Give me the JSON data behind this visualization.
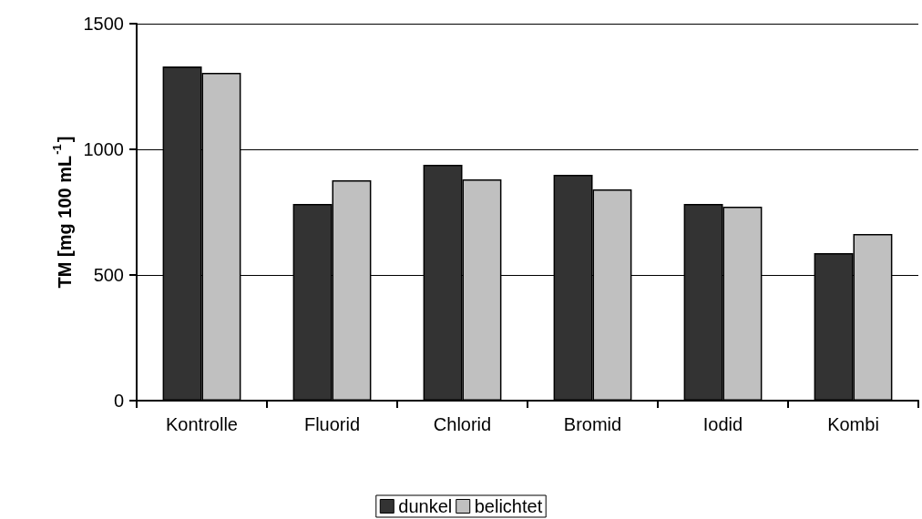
{
  "chart_data": {
    "type": "bar",
    "ylabel": "TM [mg 100 mL$^{-1}$]",
    "categories": [
      "Kontrolle",
      "Fluorid",
      "Chlorid",
      "Bromid",
      "Iodid",
      "Kombi"
    ],
    "series": [
      {
        "name": "dunkel",
        "color": "#333333",
        "values": [
          1330,
          783,
          938,
          899,
          783,
          587
        ]
      },
      {
        "name": "belichtet",
        "color": "#c0c0c0",
        "values": [
          1304,
          877,
          880,
          841,
          772,
          663
        ]
      }
    ],
    "ylim": [
      0,
      1500
    ],
    "yticks": [
      0,
      500,
      1000,
      1500
    ],
    "grid": "y",
    "legend": "bottom"
  }
}
